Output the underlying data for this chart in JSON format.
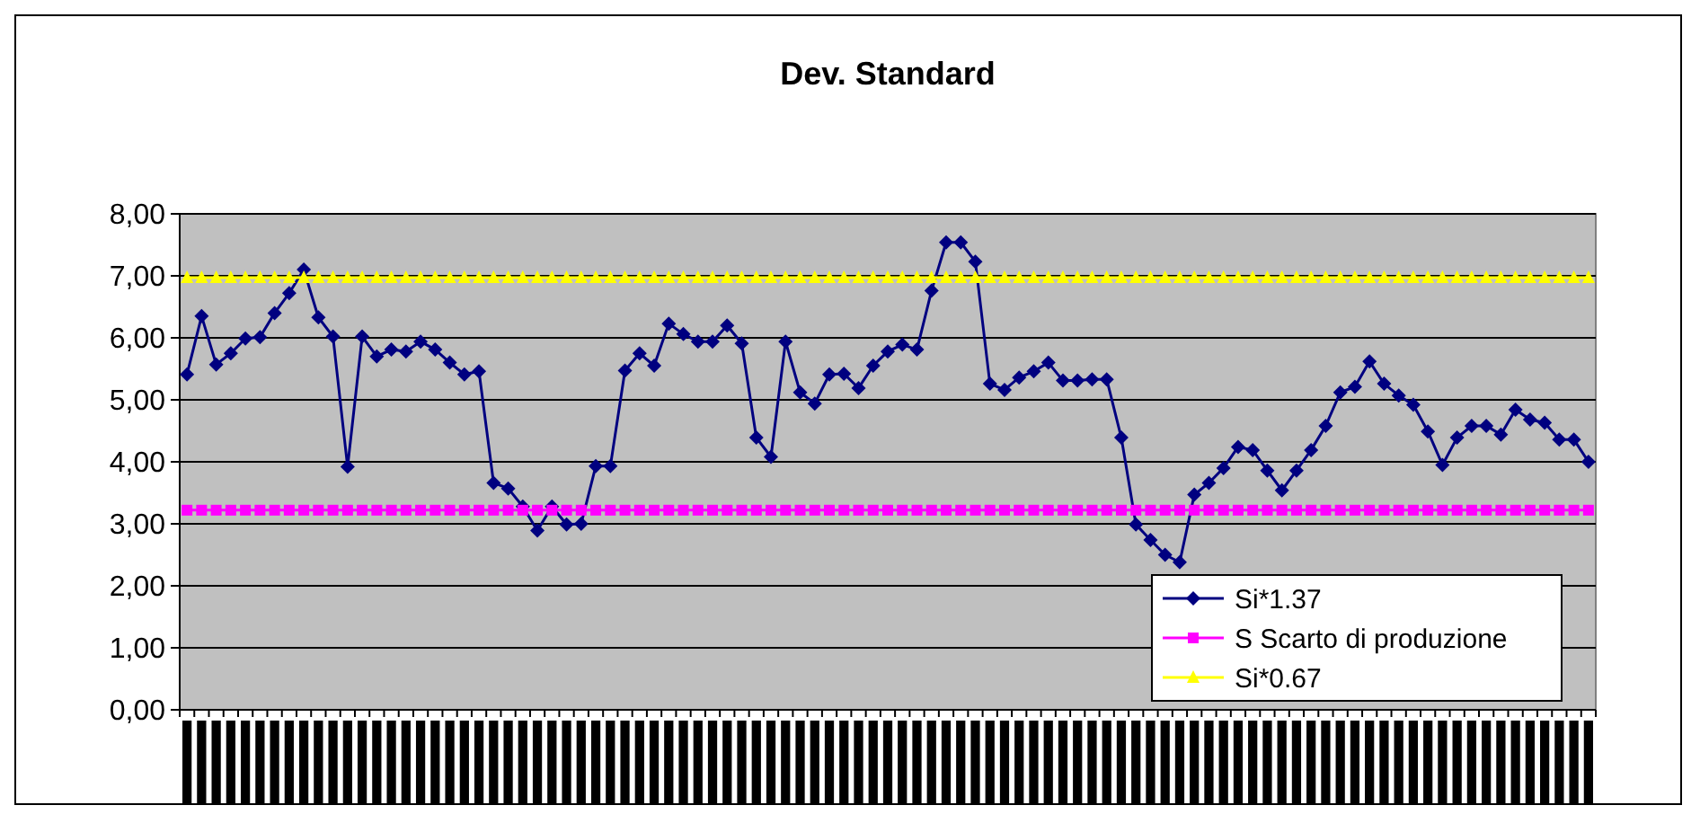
{
  "chart_data": {
    "type": "line",
    "title": "Dev. Standard",
    "categories": [
      null,
      null,
      null,
      null,
      null,
      null,
      null,
      null,
      null,
      null,
      null,
      null,
      null,
      null,
      null,
      null,
      null,
      null,
      null,
      null,
      null,
      null,
      null,
      null,
      null,
      null,
      null,
      null,
      null,
      null,
      null,
      null,
      null,
      null,
      null,
      null,
      null,
      null,
      null,
      null,
      null,
      null,
      null,
      null,
      null,
      null,
      null,
      null,
      null,
      null,
      null,
      null,
      null,
      null,
      null,
      null,
      null,
      null,
      null,
      null,
      null,
      null,
      null,
      null,
      null,
      null,
      null,
      null,
      null,
      null,
      null,
      null,
      null,
      null,
      null,
      null,
      null,
      null,
      null,
      null,
      null,
      null,
      null,
      null,
      null,
      null,
      null,
      null,
      null,
      null,
      null,
      null,
      null,
      null,
      null,
      null,
      null
    ],
    "series": [
      {
        "name": "Si*1.37",
        "color": "#000080",
        "marker": "diamond",
        "values": [
          5.41,
          6.35,
          5.57,
          5.75,
          5.99,
          6.01,
          6.4,
          6.72,
          7.1,
          6.33,
          6.02,
          3.92,
          6.02,
          5.7,
          5.81,
          5.78,
          5.94,
          5.81,
          5.6,
          5.41,
          5.46,
          3.66,
          3.57,
          3.28,
          2.89,
          3.28,
          2.99,
          3.0,
          3.93,
          3.93,
          5.47,
          5.75,
          5.55,
          6.23,
          6.06,
          5.94,
          5.94,
          6.2,
          5.91,
          4.39,
          4.08,
          5.94,
          5.12,
          4.94,
          5.41,
          5.42,
          5.19,
          5.55,
          5.78,
          5.89,
          5.81,
          6.76,
          7.54,
          7.54,
          7.23,
          5.26,
          5.16,
          5.36,
          5.46,
          5.6,
          5.31,
          5.31,
          5.33,
          5.33,
          4.39,
          2.99,
          2.74,
          2.5,
          2.38,
          3.47,
          3.66,
          3.9,
          4.24,
          4.19,
          3.86,
          3.54,
          3.86,
          4.19,
          4.58,
          5.12,
          5.21,
          5.62,
          5.26,
          5.07,
          4.92,
          4.49,
          3.95,
          4.39,
          4.58,
          4.58,
          4.44,
          4.84,
          4.68,
          4.63,
          4.36,
          4.36,
          4.0
        ]
      },
      {
        "name": "S Scarto di produzione",
        "color": "#ff00ff",
        "marker": "square",
        "values": [
          3.22,
          3.22,
          3.22,
          3.22,
          3.22,
          3.22,
          3.22,
          3.22,
          3.22,
          3.22,
          3.22,
          3.22,
          3.22,
          3.22,
          3.22,
          3.22,
          3.22,
          3.22,
          3.22,
          3.22,
          3.22,
          3.22,
          3.22,
          3.22,
          3.22,
          3.22,
          3.22,
          3.22,
          3.22,
          3.22,
          3.22,
          3.22,
          3.22,
          3.22,
          3.22,
          3.22,
          3.22,
          3.22,
          3.22,
          3.22,
          3.22,
          3.22,
          3.22,
          3.22,
          3.22,
          3.22,
          3.22,
          3.22,
          3.22,
          3.22,
          3.22,
          3.22,
          3.22,
          3.22,
          3.22,
          3.22,
          3.22,
          3.22,
          3.22,
          3.22,
          3.22,
          3.22,
          3.22,
          3.22,
          3.22,
          3.22,
          3.22,
          3.22,
          3.22,
          3.22,
          3.22,
          3.22,
          3.22,
          3.22,
          3.22,
          3.22,
          3.22,
          3.22,
          3.22,
          3.22,
          3.22,
          3.22,
          3.22,
          3.22,
          3.22,
          3.22,
          3.22,
          3.22,
          3.22,
          3.22,
          3.22,
          3.22,
          3.22,
          3.22,
          3.22,
          3.22,
          3.22
        ]
      },
      {
        "name": "Si*0.67",
        "color": "#ffff00",
        "marker": "triangle",
        "values": [
          6.97,
          6.97,
          6.97,
          6.97,
          6.97,
          6.97,
          6.97,
          6.97,
          6.97,
          6.97,
          6.97,
          6.97,
          6.97,
          6.97,
          6.97,
          6.97,
          6.97,
          6.97,
          6.97,
          6.97,
          6.97,
          6.97,
          6.97,
          6.97,
          6.97,
          6.97,
          6.97,
          6.97,
          6.97,
          6.97,
          6.97,
          6.97,
          6.97,
          6.97,
          6.97,
          6.97,
          6.97,
          6.97,
          6.97,
          6.97,
          6.97,
          6.97,
          6.97,
          6.97,
          6.97,
          6.97,
          6.97,
          6.97,
          6.97,
          6.97,
          6.97,
          6.97,
          6.97,
          6.97,
          6.97,
          6.97,
          6.97,
          6.97,
          6.97,
          6.97,
          6.97,
          6.97,
          6.97,
          6.97,
          6.97,
          6.97,
          6.97,
          6.97,
          6.97,
          6.97,
          6.97,
          6.97,
          6.97,
          6.97,
          6.97,
          6.97,
          6.97,
          6.97,
          6.97,
          6.97,
          6.97,
          6.97,
          6.97,
          6.97,
          6.97,
          6.97,
          6.97,
          6.97,
          6.97,
          6.97,
          6.97,
          6.97,
          6.97,
          6.97,
          6.97,
          6.97,
          6.97
        ]
      }
    ],
    "ylim": [
      0,
      8
    ],
    "yticks": [
      {
        "value": 0,
        "label": "0,00"
      },
      {
        "value": 1,
        "label": "1,00"
      },
      {
        "value": 2,
        "label": "2,00"
      },
      {
        "value": 3,
        "label": "3,00"
      },
      {
        "value": 4,
        "label": "4,00"
      },
      {
        "value": 5,
        "label": "5,00"
      },
      {
        "value": 6,
        "label": "6,00"
      },
      {
        "value": 7,
        "label": "7,00"
      },
      {
        "value": 8,
        "label": "8,00"
      }
    ],
    "grid": "y",
    "legend": "bottom right",
    "line_style": "solid"
  }
}
